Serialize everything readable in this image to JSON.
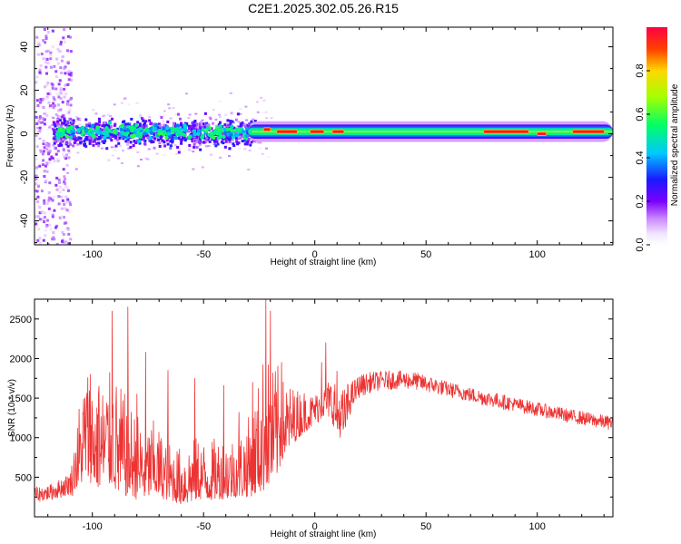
{
  "title": "C2E1.2025.302.05.26.R15",
  "colors": {
    "snr_line": "#ee3333",
    "frame": "#000000",
    "background": "#ffffff"
  },
  "chart_data": [
    {
      "type": "heatmap",
      "title": "C2E1.2025.302.05.26.R15",
      "xlabel": "Height of straight line (km)",
      "ylabel": "Frequency (Hz)",
      "xlim": [
        -126,
        134
      ],
      "ylim": [
        -51,
        49
      ],
      "x_ticks": [
        -100,
        -50,
        0,
        50,
        100
      ],
      "y_ticks": [
        -40,
        -20,
        0,
        20,
        40
      ],
      "x_tick_labels": [
        "-100",
        "-50",
        "0",
        "50",
        "100"
      ],
      "y_tick_labels": [
        "-40",
        "-20",
        "0",
        "20",
        "40"
      ],
      "colorbar": {
        "label": "Normalized spectral amplitude",
        "range": [
          0.0,
          1.0
        ],
        "ticks": [
          0.0,
          0.2,
          0.4,
          0.6,
          0.8
        ],
        "tick_labels": [
          "0.0",
          "0.2",
          "0.4",
          "0.6",
          "0.8"
        ],
        "colormap": "rainbow (white-violet-blue-cyan-green-yellow-red)"
      },
      "features": {
        "noisy_region_x": [
          -126,
          -30
        ],
        "noisy_band_center_hz": 1,
        "noisy_band_halfwidth_hz": 7,
        "coherent_band_x": [
          -30,
          134
        ],
        "coherent_band_center_hz": 1,
        "coherent_band_halfwidth_hz": 2.5,
        "peak_segments": [
          {
            "x": [
              -23,
              -20
            ],
            "hz": 2.0
          },
          {
            "x": [
              -17,
              -8
            ],
            "hz": 1.0
          },
          {
            "x": [
              -2,
              4
            ],
            "hz": 1.0
          },
          {
            "x": [
              8,
              13
            ],
            "hz": 1.0
          },
          {
            "x": [
              76,
              96
            ],
            "hz": 1.0
          },
          {
            "x": [
              100,
              104
            ],
            "hz": 0.0
          },
          {
            "x": [
              116,
              130
            ],
            "hz": 1.0
          }
        ]
      }
    },
    {
      "type": "line",
      "xlabel": "Height of straight line (km)",
      "ylabel": "SNR (10 * v/v)",
      "xlim": [
        -126,
        134
      ],
      "ylim": [
        0,
        2750
      ],
      "x_ticks": [
        -100,
        -50,
        0,
        50,
        100
      ],
      "y_ticks": [
        500,
        1000,
        1500,
        2000,
        2500
      ],
      "x_tick_labels": [
        "-100",
        "-50",
        "0",
        "50",
        "100"
      ],
      "y_tick_labels": [
        "500",
        "1000",
        "1500",
        "2000",
        "2500"
      ],
      "series": [
        {
          "color": "#ee3333",
          "x": [
            -126,
            -120,
            -115,
            -110,
            -106,
            -103,
            -100,
            -97,
            -94,
            -91,
            -88,
            -85,
            -82,
            -80,
            -76,
            -72,
            -68,
            -64,
            -60,
            -56,
            -52,
            -48,
            -44,
            -40,
            -36,
            -32,
            -28,
            -25,
            -22,
            -20,
            -17,
            -14,
            -11,
            -8,
            -5,
            -2,
            0,
            3,
            5,
            8,
            10,
            13,
            16,
            20,
            25,
            30,
            35,
            40,
            45,
            50,
            55,
            60,
            65,
            70,
            75,
            80,
            85,
            90,
            95,
            100,
            105,
            110,
            115,
            120,
            125,
            130,
            134
          ],
          "center": [
            280,
            300,
            350,
            420,
            700,
            1000,
            900,
            800,
            850,
            900,
            750,
            700,
            650,
            600,
            550,
            600,
            500,
            450,
            400,
            450,
            500,
            450,
            500,
            500,
            520,
            550,
            650,
            800,
            1000,
            900,
            1000,
            1100,
            1150,
            1200,
            1250,
            1300,
            1350,
            1420,
            1450,
            1400,
            1300,
            1200,
            1500,
            1650,
            1700,
            1720,
            1730,
            1730,
            1720,
            1680,
            1650,
            1610,
            1580,
            1540,
            1510,
            1480,
            1450,
            1420,
            1390,
            1360,
            1330,
            1300,
            1270,
            1250,
            1220,
            1200,
            1180
          ],
          "spread": [
            120,
            120,
            150,
            180,
            600,
            900,
            900,
            800,
            900,
            900,
            900,
            800,
            700,
            700,
            600,
            600,
            500,
            450,
            450,
            500,
            500,
            450,
            500,
            500,
            500,
            550,
            700,
            900,
            1200,
            900,
            900,
            600,
            500,
            400,
            350,
            300,
            250,
            250,
            250,
            400,
            500,
            400,
            250,
            180,
            160,
            150,
            150,
            140,
            140,
            130,
            130,
            120,
            120,
            120,
            120,
            120,
            120,
            110,
            110,
            110,
            110,
            110,
            110,
            110,
            110,
            110,
            110
          ],
          "peaks": [
            {
              "x": -106,
              "y": 1360
            },
            {
              "x": -101,
              "y": 1800
            },
            {
              "x": -97,
              "y": 1650
            },
            {
              "x": -91,
              "y": 2600
            },
            {
              "x": -84,
              "y": 2650
            },
            {
              "x": -80,
              "y": 1550
            },
            {
              "x": -76,
              "y": 2080
            },
            {
              "x": -66,
              "y": 1850
            },
            {
              "x": -54,
              "y": 1750
            },
            {
              "x": -41,
              "y": 1660
            },
            {
              "x": -34,
              "y": 1320
            },
            {
              "x": -28,
              "y": 1700
            },
            {
              "x": -22,
              "y": 2750
            },
            {
              "x": -20,
              "y": 2600
            },
            {
              "x": -15,
              "y": 1950
            },
            {
              "x": 3,
              "y": 1950
            },
            {
              "x": 5,
              "y": 2200
            },
            {
              "x": 10,
              "y": 1840
            }
          ]
        }
      ]
    }
  ]
}
